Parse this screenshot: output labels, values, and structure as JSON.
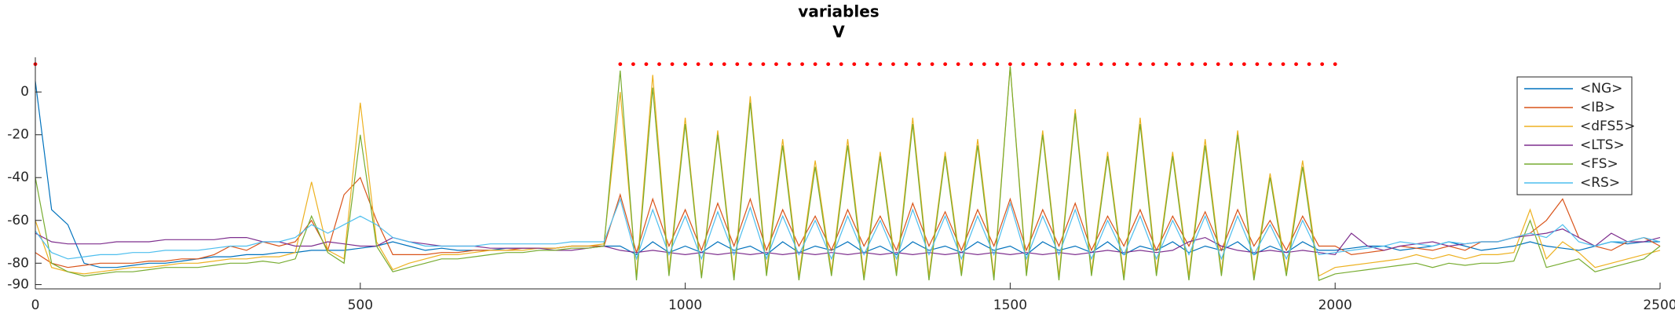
{
  "chart_data": {
    "type": "line",
    "title": "variables",
    "subtitle": "V",
    "x": [
      0,
      25,
      50,
      75,
      100,
      125,
      150,
      175,
      200,
      225,
      250,
      275,
      300,
      325,
      350,
      375,
      400,
      425,
      450,
      475,
      500,
      525,
      550,
      575,
      600,
      625,
      650,
      675,
      700,
      725,
      750,
      775,
      800,
      825,
      850,
      875,
      900,
      925,
      950,
      975,
      1000,
      1025,
      1050,
      1075,
      1100,
      1125,
      1150,
      1175,
      1200,
      1225,
      1250,
      1275,
      1300,
      1325,
      1350,
      1375,
      1400,
      1425,
      1450,
      1475,
      1500,
      1525,
      1550,
      1575,
      1600,
      1625,
      1650,
      1675,
      1700,
      1725,
      1750,
      1775,
      1800,
      1825,
      1850,
      1875,
      1900,
      1925,
      1950,
      1975,
      2000,
      2025,
      2050,
      2075,
      2100,
      2125,
      2150,
      2175,
      2200,
      2225,
      2250,
      2275,
      2300,
      2325,
      2350,
      2375,
      2400,
      2425,
      2450,
      2475,
      2500
    ],
    "series": [
      {
        "name": "<NG>",
        "color": "#0072BD",
        "values": [
          5,
          -55,
          -62,
          -80,
          -82,
          -82,
          -81,
          -80,
          -80,
          -79,
          -78,
          -77,
          -77,
          -76,
          -76,
          -75,
          -75,
          -74,
          -74,
          -74,
          -73,
          -72,
          -70,
          -72,
          -74,
          -73,
          -74,
          -74,
          -74,
          -73,
          -73,
          -73,
          -73,
          -72,
          -72,
          -72,
          -72,
          -76,
          -70,
          -75,
          -72,
          -75,
          -70,
          -74,
          -72,
          -76,
          -70,
          -75,
          -72,
          -74,
          -70,
          -75,
          -72,
          -76,
          -70,
          -74,
          -72,
          -75,
          -70,
          -74,
          -72,
          -76,
          -70,
          -74,
          -72,
          -75,
          -70,
          -76,
          -72,
          -74,
          -70,
          -75,
          -72,
          -74,
          -70,
          -76,
          -72,
          -75,
          -70,
          -74,
          -74,
          -73,
          -72,
          -72,
          -74,
          -73,
          -72,
          -70,
          -72,
          -74,
          -73,
          -72,
          -70,
          -72,
          -73,
          -74,
          -72,
          -70,
          -71,
          -70,
          -70
        ]
      },
      {
        "name": "<IB>",
        "color": "#D95319",
        "values": [
          -75,
          -80,
          -82,
          -81,
          -80,
          -80,
          -80,
          -79,
          -79,
          -78,
          -78,
          -76,
          -72,
          -74,
          -70,
          -72,
          -70,
          -60,
          -74,
          -48,
          -40,
          -60,
          -76,
          -76,
          -76,
          -75,
          -75,
          -74,
          -74,
          -74,
          -73,
          -73,
          -73,
          -72,
          -72,
          -72,
          -48,
          -75,
          -50,
          -72,
          -55,
          -74,
          -52,
          -72,
          -50,
          -74,
          -55,
          -72,
          -58,
          -74,
          -55,
          -72,
          -58,
          -74,
          -52,
          -72,
          -56,
          -74,
          -55,
          -72,
          -50,
          -74,
          -55,
          -72,
          -52,
          -74,
          -58,
          -72,
          -55,
          -74,
          -58,
          -72,
          -56,
          -74,
          -55,
          -72,
          -60,
          -74,
          -58,
          -72,
          -72,
          -76,
          -75,
          -74,
          -72,
          -73,
          -74,
          -72,
          -74,
          -70,
          -70,
          -68,
          -66,
          -60,
          -50,
          -68,
          -72,
          -74,
          -70,
          -68,
          -72
        ]
      },
      {
        "name": "<dFS5>",
        "color": "#EDB120",
        "values": [
          -60,
          -82,
          -84,
          -85,
          -84,
          -83,
          -82,
          -82,
          -81,
          -80,
          -80,
          -79,
          -78,
          -78,
          -77,
          -77,
          -75,
          -42,
          -74,
          -78,
          -5,
          -70,
          -83,
          -80,
          -78,
          -76,
          -76,
          -75,
          -74,
          -74,
          -74,
          -73,
          -73,
          -72,
          -72,
          -71,
          0,
          -86,
          8,
          -84,
          -12,
          -86,
          -18,
          -86,
          -2,
          -84,
          -22,
          -86,
          -32,
          -84,
          -22,
          -86,
          -28,
          -84,
          -12,
          -86,
          -28,
          -84,
          -22,
          -86,
          12,
          -84,
          -18,
          -86,
          -8,
          -84,
          -28,
          -86,
          -12,
          -84,
          -28,
          -86,
          -22,
          -84,
          -18,
          -86,
          -38,
          -84,
          -32,
          -86,
          -82,
          -81,
          -80,
          -79,
          -78,
          -76,
          -78,
          -76,
          -78,
          -76,
          -76,
          -75,
          -55,
          -78,
          -70,
          -75,
          -82,
          -80,
          -78,
          -76,
          -74
        ]
      },
      {
        "name": "<LTS>",
        "color": "#7E2F8E",
        "values": [
          -66,
          -70,
          -71,
          -71,
          -71,
          -70,
          -70,
          -70,
          -69,
          -69,
          -69,
          -69,
          -68,
          -68,
          -70,
          -70,
          -72,
          -72,
          -70,
          -71,
          -72,
          -72,
          -68,
          -70,
          -71,
          -72,
          -72,
          -72,
          -73,
          -73,
          -73,
          -73,
          -74,
          -74,
          -73,
          -72,
          -74,
          -75,
          -74,
          -75,
          -76,
          -75,
          -76,
          -75,
          -76,
          -75,
          -76,
          -75,
          -76,
          -75,
          -76,
          -75,
          -76,
          -75,
          -76,
          -75,
          -76,
          -75,
          -76,
          -75,
          -76,
          -75,
          -76,
          -75,
          -76,
          -75,
          -74,
          -75,
          -74,
          -75,
          -74,
          -70,
          -68,
          -72,
          -74,
          -75,
          -74,
          -75,
          -74,
          -75,
          -76,
          -66,
          -72,
          -74,
          -72,
          -71,
          -70,
          -72,
          -71,
          -70,
          -70,
          -68,
          -67,
          -66,
          -64,
          -68,
          -72,
          -66,
          -70,
          -70,
          -68
        ]
      },
      {
        "name": "<FS>",
        "color": "#77AC30",
        "values": [
          -40,
          -80,
          -84,
          -86,
          -85,
          -84,
          -84,
          -83,
          -82,
          -82,
          -82,
          -81,
          -80,
          -80,
          -79,
          -80,
          -78,
          -58,
          -75,
          -80,
          -20,
          -72,
          -84,
          -82,
          -80,
          -78,
          -78,
          -77,
          -76,
          -75,
          -75,
          -74,
          -74,
          -73,
          -73,
          -72,
          10,
          -88,
          2,
          -86,
          -15,
          -87,
          -20,
          -88,
          -5,
          -86,
          -25,
          -88,
          -35,
          -86,
          -25,
          -88,
          -30,
          -86,
          -15,
          -88,
          -30,
          -86,
          -25,
          -88,
          12,
          -86,
          -20,
          -88,
          -10,
          -86,
          -30,
          -88,
          -15,
          -86,
          -30,
          -88,
          -25,
          -86,
          -20,
          -88,
          -40,
          -86,
          -35,
          -88,
          -85,
          -84,
          -83,
          -82,
          -81,
          -80,
          -82,
          -80,
          -81,
          -80,
          -80,
          -79,
          -60,
          -82,
          -80,
          -78,
          -84,
          -82,
          -80,
          -78,
          -72
        ]
      },
      {
        "name": "<RS>",
        "color": "#4DBEEE",
        "values": [
          -65,
          -75,
          -78,
          -77,
          -76,
          -76,
          -75,
          -75,
          -74,
          -74,
          -74,
          -73,
          -72,
          -72,
          -70,
          -70,
          -68,
          -62,
          -66,
          -62,
          -58,
          -62,
          -68,
          -70,
          -72,
          -72,
          -72,
          -72,
          -71,
          -71,
          -71,
          -71,
          -71,
          -70,
          -70,
          -70,
          -50,
          -78,
          -55,
          -76,
          -58,
          -78,
          -56,
          -76,
          -54,
          -78,
          -58,
          -76,
          -60,
          -78,
          -58,
          -76,
          -60,
          -78,
          -55,
          -76,
          -58,
          -78,
          -58,
          -76,
          -52,
          -78,
          -58,
          -76,
          -55,
          -78,
          -60,
          -76,
          -58,
          -78,
          -60,
          -76,
          -58,
          -78,
          -58,
          -76,
          -62,
          -78,
          -60,
          -76,
          -75,
          -74,
          -73,
          -72,
          -70,
          -71,
          -72,
          -70,
          -71,
          -70,
          -70,
          -68,
          -66,
          -68,
          -62,
          -70,
          -72,
          -70,
          -70,
          -68,
          -70
        ]
      }
    ],
    "event_markers": {
      "color": "#ff0000",
      "y": 13,
      "x": [
        0,
        900,
        920,
        940,
        960,
        980,
        1000,
        1020,
        1040,
        1060,
        1080,
        1100,
        1120,
        1140,
        1160,
        1180,
        1200,
        1220,
        1240,
        1260,
        1280,
        1300,
        1320,
        1340,
        1360,
        1380,
        1400,
        1420,
        1440,
        1460,
        1480,
        1500,
        1520,
        1540,
        1560,
        1580,
        1600,
        1620,
        1640,
        1660,
        1680,
        1700,
        1720,
        1740,
        1760,
        1780,
        1800,
        1820,
        1840,
        1860,
        1880,
        1900,
        1920,
        1940,
        1960,
        1980,
        2000
      ]
    },
    "xlim": [
      0,
      2500
    ],
    "xticks": [
      0,
      500,
      1000,
      1500,
      2000,
      2500
    ],
    "ylim": [
      -92,
      14
    ],
    "yticks": [
      0,
      -20,
      -40,
      -60,
      -80,
      -90
    ],
    "legend": "northeast",
    "grid": false
  }
}
